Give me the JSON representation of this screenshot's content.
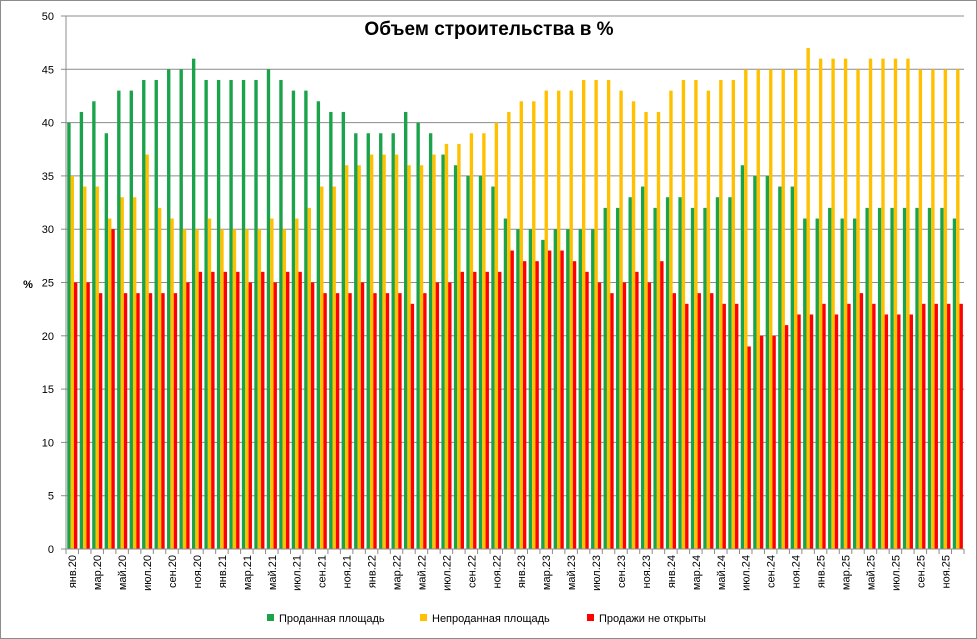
{
  "chart_data": {
    "type": "bar",
    "title": "Объем строительства в %",
    "ylabel": "%",
    "ylim": [
      0,
      50
    ],
    "yticks": [
      0,
      5,
      10,
      15,
      20,
      25,
      30,
      35,
      40,
      45,
      50
    ],
    "grid": true,
    "legend_position": "bottom",
    "categories": [
      "янв.20",
      "фев.20",
      "мар.20",
      "апр.20",
      "май.20",
      "июн.20",
      "июл.20",
      "авг.20",
      "сен.20",
      "окт.20",
      "ноя.20",
      "дек.20",
      "янв.21",
      "фев.21",
      "мар.21",
      "апр.21",
      "май.21",
      "июн.21",
      "июл.21",
      "авг.21",
      "сен.21",
      "окт.21",
      "ноя.21",
      "дек.21",
      "янв.22",
      "фев.22",
      "мар.22",
      "апр.22",
      "май.22",
      "июн.22",
      "июл.22",
      "авг.22",
      "сен.22",
      "окт.22",
      "ноя.22",
      "дек.22",
      "янв.23",
      "фев.23",
      "мар.23",
      "апр.23",
      "май.23",
      "июн.23",
      "июл.23",
      "авг.23",
      "сен.23",
      "окт.23",
      "ноя.23",
      "дек.23",
      "янв.24",
      "фев.24",
      "мар.24",
      "апр.24",
      "май.24",
      "июн.24",
      "июл.24",
      "авг.24",
      "сен.24",
      "окт.24",
      "ноя.24",
      "дек.24",
      "янв.25",
      "фев.25",
      "мар.25",
      "апр.25",
      "май.25",
      "июн.25",
      "июл.25",
      "авг.25",
      "сен.25",
      "окт.25",
      "ноя.25",
      "дек.25"
    ],
    "tick_labels_shown": [
      "янв.20",
      "мар.20",
      "май.20",
      "июл.20",
      "сен.20",
      "ноя.20",
      "янв.21",
      "мар.21",
      "май.21",
      "июл.21",
      "сен.21",
      "ноя.21",
      "янв.22",
      "мар.22",
      "май.22",
      "июл.22",
      "сен.22",
      "ноя.22",
      "янв.23",
      "мар.23",
      "май.23",
      "июл.23",
      "сен.23",
      "ноя.23",
      "янв.24",
      "мар.24",
      "май.24",
      "июл.24",
      "сен.24",
      "ноя.24",
      "янв.25",
      "мар.25",
      "май.25",
      "июл.25",
      "сен.25",
      "ноя.25"
    ],
    "series": [
      {
        "name": "Проданная площадь",
        "color": "#1aa34a",
        "values": [
          40,
          41,
          42,
          39,
          43,
          43,
          44,
          44,
          45,
          45,
          46,
          44,
          44,
          44,
          44,
          44,
          45,
          44,
          43,
          43,
          42,
          41,
          41,
          39,
          39,
          39,
          39,
          41,
          40,
          39,
          37,
          36,
          35,
          35,
          34,
          31,
          30,
          30,
          29,
          30,
          30,
          30,
          30,
          32,
          32,
          33,
          34,
          32,
          33,
          33,
          32,
          32,
          33,
          33,
          36,
          35,
          35,
          34,
          34,
          31,
          31,
          32,
          31,
          31,
          32,
          32,
          32,
          32,
          32,
          32,
          32,
          31
        ]
      },
      {
        "name": "Непроданная площадь",
        "color": "#ffc000",
        "values": [
          35,
          34,
          34,
          31,
          33,
          33,
          37,
          32,
          31,
          30,
          30,
          31,
          30,
          30,
          30,
          30,
          31,
          30,
          31,
          32,
          34,
          34,
          36,
          36,
          37,
          37,
          37,
          36,
          36,
          37,
          38,
          38,
          39,
          39,
          40,
          41,
          42,
          42,
          43,
          43,
          43,
          44,
          44,
          44,
          43,
          42,
          41,
          41,
          43,
          44,
          44,
          43,
          44,
          44,
          45,
          45,
          45,
          45,
          45,
          47,
          46,
          46,
          46,
          45,
          46,
          46,
          46,
          46,
          45,
          45,
          45,
          45
        ]
      },
      {
        "name": "Продажи не открыты",
        "color": "#ff0000",
        "values": [
          25,
          25,
          24,
          30,
          24,
          24,
          24,
          24,
          24,
          25,
          26,
          26,
          26,
          26,
          25,
          26,
          25,
          26,
          26,
          25,
          24,
          24,
          24,
          25,
          24,
          24,
          24,
          23,
          24,
          25,
          25,
          26,
          26,
          26,
          26,
          28,
          27,
          27,
          28,
          28,
          27,
          26,
          25,
          24,
          25,
          26,
          25,
          27,
          24,
          23,
          24,
          24,
          23,
          23,
          19,
          20,
          20,
          21,
          22,
          22,
          23,
          22,
          23,
          24,
          23,
          22,
          22,
          22,
          23,
          23,
          23,
          23
        ]
      }
    ]
  }
}
